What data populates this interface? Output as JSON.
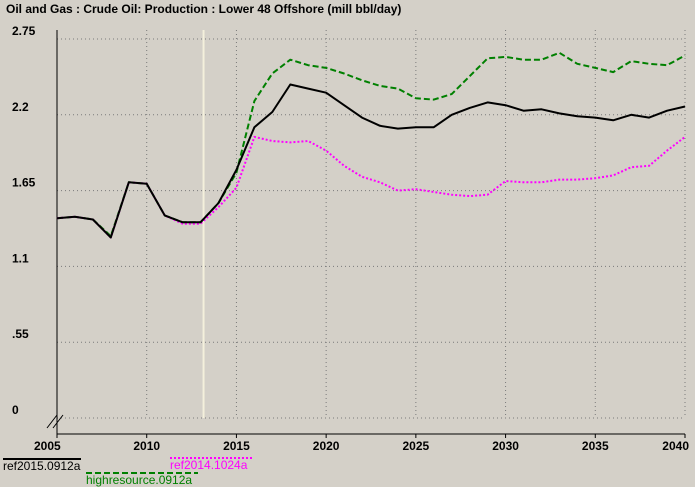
{
  "chart_data": {
    "type": "line",
    "title": "Oil and Gas : Crude Oil: Production : Lower 48 Offshore (mill bbl/day)",
    "xlabel": "",
    "ylabel": "",
    "xlim": [
      2005,
      2040
    ],
    "ylim": [
      0,
      2.75
    ],
    "x_ticks": [
      "2005",
      "2010",
      "2015",
      "2020",
      "2025",
      "2030",
      "2035",
      "2040"
    ],
    "y_ticks": [
      "0",
      ".55",
      "1.1",
      "1.65",
      "2.2",
      "2.75"
    ],
    "grid": true,
    "highlight_year": 2013,
    "x": [
      2005,
      2006,
      2007,
      2008,
      2009,
      2010,
      2011,
      2012,
      2013,
      2014,
      2015,
      2016,
      2017,
      2018,
      2019,
      2020,
      2021,
      2022,
      2023,
      2024,
      2025,
      2026,
      2027,
      2028,
      2029,
      2030,
      2031,
      2032,
      2033,
      2034,
      2035,
      2036,
      2037,
      2038,
      2039,
      2040
    ],
    "series": [
      {
        "name": "ref2015.0912a",
        "color": "#000000",
        "style": "solid",
        "values": [
          1.45,
          1.46,
          1.44,
          1.31,
          1.71,
          1.7,
          1.47,
          1.42,
          1.42,
          1.56,
          1.8,
          2.11,
          2.22,
          2.42,
          2.39,
          2.36,
          2.27,
          2.18,
          2.12,
          2.1,
          2.11,
          2.11,
          2.2,
          2.25,
          2.29,
          2.27,
          2.23,
          2.24,
          2.21,
          2.19,
          2.18,
          2.16,
          2.2,
          2.18,
          2.23,
          2.26
        ]
      },
      {
        "name": "highresource.0912a",
        "color": "#008000",
        "style": "dashed",
        "values": [
          1.45,
          1.46,
          1.44,
          1.32,
          1.71,
          1.7,
          1.47,
          1.42,
          1.42,
          1.56,
          1.78,
          2.3,
          2.5,
          2.6,
          2.56,
          2.54,
          2.5,
          2.45,
          2.41,
          2.39,
          2.32,
          2.31,
          2.35,
          2.48,
          2.61,
          2.62,
          2.6,
          2.6,
          2.65,
          2.57,
          2.54,
          2.51,
          2.59,
          2.57,
          2.56,
          2.63
        ]
      },
      {
        "name": "ref2014.1024a",
        "color": "#ff00ff",
        "style": "dotted",
        "values": [
          1.45,
          1.46,
          1.44,
          1.31,
          1.71,
          1.7,
          1.47,
          1.41,
          1.41,
          1.53,
          1.67,
          2.04,
          2.01,
          2.0,
          2.01,
          1.94,
          1.83,
          1.75,
          1.71,
          1.65,
          1.66,
          1.64,
          1.62,
          1.61,
          1.62,
          1.72,
          1.71,
          1.71,
          1.73,
          1.73,
          1.74,
          1.76,
          1.82,
          1.83,
          1.94,
          2.04
        ]
      }
    ]
  }
}
